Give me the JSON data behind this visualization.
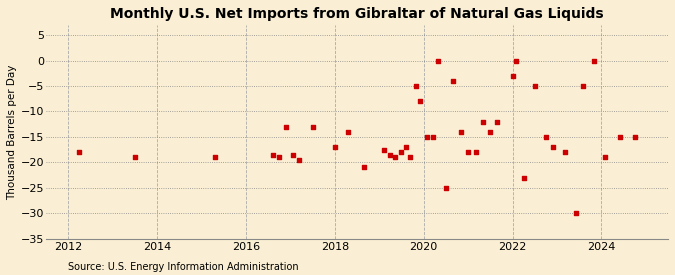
{
  "title": "Monthly U.S. Net Imports from Gibraltar of Natural Gas Liquids",
  "ylabel": "Thousand Barrels per Day",
  "source": "Source: U.S. Energy Information Administration",
  "xlim": [
    2011.5,
    2025.5
  ],
  "ylim": [
    -35,
    7
  ],
  "yticks": [
    5,
    0,
    -5,
    -10,
    -15,
    -20,
    -25,
    -30,
    -35
  ],
  "xticks": [
    2012,
    2014,
    2016,
    2018,
    2020,
    2022,
    2024
  ],
  "background_color": "#faefd4",
  "plot_bg_color": "#faefd4",
  "data_points": [
    [
      2012.25,
      -18
    ],
    [
      2013.5,
      -19
    ],
    [
      2015.3,
      -19
    ],
    [
      2016.6,
      -18.5
    ],
    [
      2016.75,
      -19
    ],
    [
      2016.9,
      -13
    ],
    [
      2017.05,
      -18.5
    ],
    [
      2017.2,
      -19.5
    ],
    [
      2017.5,
      -13
    ],
    [
      2018.0,
      -17
    ],
    [
      2018.3,
      -14
    ],
    [
      2018.65,
      -21
    ],
    [
      2019.1,
      -17.5
    ],
    [
      2019.25,
      -18.5
    ],
    [
      2019.35,
      -19
    ],
    [
      2019.5,
      -18
    ],
    [
      2019.6,
      -17
    ],
    [
      2019.7,
      -19
    ],
    [
      2019.82,
      -5
    ],
    [
      2019.92,
      -8
    ],
    [
      2020.08,
      -15
    ],
    [
      2020.2,
      -15
    ],
    [
      2020.33,
      0
    ],
    [
      2020.5,
      -25
    ],
    [
      2020.67,
      -4
    ],
    [
      2020.83,
      -14
    ],
    [
      2021.0,
      -18
    ],
    [
      2021.17,
      -18
    ],
    [
      2021.33,
      -12
    ],
    [
      2021.5,
      -14
    ],
    [
      2021.65,
      -12
    ],
    [
      2022.0,
      -3
    ],
    [
      2022.08,
      0
    ],
    [
      2022.25,
      -23
    ],
    [
      2022.5,
      -5
    ],
    [
      2022.75,
      -15
    ],
    [
      2022.92,
      -17
    ],
    [
      2023.17,
      -18
    ],
    [
      2023.42,
      -30
    ],
    [
      2023.58,
      -5
    ],
    [
      2023.83,
      0
    ],
    [
      2024.08,
      -19
    ],
    [
      2024.42,
      -15
    ],
    [
      2024.75,
      -15
    ]
  ],
  "marker_color": "#cc0000",
  "marker_size": 8,
  "title_fontsize": 10,
  "label_fontsize": 7.5,
  "tick_fontsize": 8,
  "source_fontsize": 7
}
